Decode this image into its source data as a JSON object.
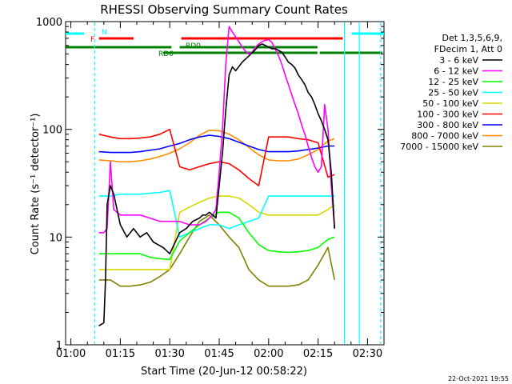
{
  "chart_data": {
    "type": "line",
    "title": "RHESSI Observing Summary Count Rates",
    "xlabel": "Start Time (20-Jun-12 00:58:22)",
    "ylabel": "Count Rate (s⁻¹ detector⁻¹)",
    "yscale": "log",
    "ylim": [
      1,
      1000
    ],
    "xlim": [
      58.4,
      155.0
    ],
    "x_unit": "minutes after 00:00 UT",
    "x_ticks": [
      {
        "value": 60,
        "label": "01:00"
      },
      {
        "value": 75,
        "label": "01:15"
      },
      {
        "value": 90,
        "label": "01:30"
      },
      {
        "value": 105,
        "label": "01:45"
      },
      {
        "value": 120,
        "label": "02:00"
      },
      {
        "value": 135,
        "label": "02:15"
      },
      {
        "value": 150,
        "label": "02:30"
      }
    ],
    "y_ticks": [
      {
        "value": 1,
        "label": "1"
      },
      {
        "value": 10,
        "label": "10"
      },
      {
        "value": 100,
        "label": "100"
      },
      {
        "value": 1000,
        "label": "1000"
      }
    ],
    "legend": {
      "position": "right",
      "header": [
        "Det 1,3,5,6,9,",
        "FDecim 1, Att 0"
      ]
    },
    "series": [
      {
        "name": "3 - 6 keV",
        "color": "#000000",
        "x": [
          68.5,
          70,
          70.5,
          71,
          72,
          73,
          75,
          77,
          79,
          81,
          83,
          85,
          88,
          90,
          93,
          95,
          97,
          99,
          100,
          101,
          102,
          103,
          104,
          105,
          106,
          107,
          108,
          109,
          110,
          112,
          114,
          116,
          117,
          118,
          119,
          120,
          121,
          122,
          123,
          124,
          125,
          126,
          127,
          128,
          129,
          130,
          131,
          132,
          133,
          134,
          135,
          136,
          137,
          138,
          139,
          140
        ],
        "y": [
          1.5,
          1.6,
          4,
          20,
          30,
          25,
          13,
          10,
          12,
          10,
          11,
          9,
          8,
          7,
          11,
          12,
          14,
          15,
          16,
          16,
          17,
          16,
          15,
          30,
          60,
          150,
          320,
          380,
          350,
          420,
          480,
          550,
          600,
          620,
          600,
          580,
          560,
          560,
          540,
          520,
          470,
          420,
          400,
          370,
          320,
          290,
          260,
          220,
          200,
          170,
          140,
          120,
          100,
          80,
          40,
          12
        ]
      },
      {
        "name": "6 - 12 keV",
        "color": "#ff00ff",
        "x": [
          68.5,
          70,
          71,
          72,
          73,
          75,
          78,
          81,
          84,
          87,
          90,
          93,
          96,
          99,
          101,
          102,
          103,
          104,
          105,
          106,
          107,
          108,
          109,
          110,
          111,
          112,
          113,
          114,
          115,
          116,
          117,
          118,
          119,
          120,
          121,
          122,
          123,
          124,
          125,
          126,
          127,
          128,
          129,
          130,
          131,
          132,
          133,
          134,
          135,
          136,
          137,
          138,
          139,
          140
        ],
        "y": [
          11,
          11,
          12,
          50,
          18,
          16,
          16,
          16,
          15,
          14,
          14,
          14,
          13,
          13,
          14,
          15,
          16,
          18,
          40,
          100,
          400,
          900,
          800,
          720,
          650,
          580,
          530,
          500,
          520,
          580,
          620,
          650,
          670,
          680,
          640,
          560,
          480,
          400,
          320,
          260,
          210,
          170,
          140,
          110,
          90,
          70,
          55,
          45,
          40,
          45,
          170,
          100,
          30,
          12
        ]
      },
      {
        "name": "12 - 25 keV",
        "color": "#00ff00",
        "x": [
          68.5,
          72,
          75,
          78,
          81,
          84,
          87,
          90,
          93,
          96,
          99,
          102,
          105,
          108,
          111,
          114,
          117,
          120,
          123,
          126,
          129,
          132,
          135,
          138,
          140
        ],
        "y": [
          7,
          7,
          7,
          7,
          7,
          6.5,
          6.3,
          6.2,
          9.2,
          11,
          13,
          15,
          17,
          17,
          15,
          11,
          8.5,
          7.5,
          7.3,
          7.2,
          7.3,
          7.5,
          8,
          9.5,
          10
        ]
      },
      {
        "name": "25 - 50 keV",
        "color": "#00ffff",
        "x": [
          68.5,
          72,
          75,
          78,
          81,
          84,
          87,
          90,
          93,
          96,
          99,
          102,
          105,
          108,
          111,
          114,
          117,
          120,
          123,
          126,
          129,
          132,
          135,
          138,
          140
        ],
        "y": [
          24,
          24,
          25,
          25,
          25,
          25.5,
          26,
          27,
          10,
          11,
          12,
          13,
          13,
          12,
          13,
          14,
          15,
          24,
          24,
          24,
          24,
          24,
          24,
          24,
          24
        ]
      },
      {
        "name": "50 - 100 keV",
        "color": "#d7d700",
        "x": [
          68.5,
          72,
          75,
          78,
          81,
          84,
          87,
          90,
          93,
          96,
          99,
          102,
          105,
          108,
          111,
          114,
          117,
          120,
          123,
          126,
          129,
          132,
          135,
          138,
          140
        ],
        "y": [
          5,
          5,
          5,
          5,
          5,
          5,
          5,
          5,
          17,
          19,
          21,
          23,
          24,
          24,
          23,
          20,
          17,
          16,
          16,
          16,
          16,
          16,
          16,
          18,
          20
        ]
      },
      {
        "name": "100 - 300 keV",
        "color": "#ff0000",
        "x": [
          68.5,
          72,
          75,
          78,
          81,
          84,
          87,
          90,
          93,
          96,
          99,
          102,
          105,
          108,
          111,
          114,
          117,
          120,
          123,
          126,
          129,
          132,
          135,
          138,
          140
        ],
        "y": [
          90,
          85,
          82,
          82,
          83,
          85,
          90,
          100,
          45,
          42,
          45,
          48,
          50,
          48,
          42,
          35,
          30,
          85,
          85,
          85,
          82,
          80,
          75,
          36,
          38
        ]
      },
      {
        "name": "300 - 800 keV",
        "color": "#0000ff",
        "x": [
          68.5,
          72,
          75,
          78,
          81,
          84,
          87,
          90,
          93,
          96,
          99,
          102,
          105,
          108,
          111,
          114,
          117,
          120,
          123,
          126,
          129,
          132,
          135,
          138,
          140
        ],
        "y": [
          62,
          61,
          61,
          61,
          62,
          64,
          66,
          70,
          74,
          80,
          85,
          88,
          86,
          82,
          76,
          70,
          65,
          62,
          62,
          62,
          63,
          65,
          67,
          70,
          70
        ]
      },
      {
        "name": "800 - 7000 keV",
        "color": "#ff8c00",
        "x": [
          68.5,
          72,
          75,
          78,
          81,
          84,
          87,
          90,
          93,
          96,
          99,
          102,
          105,
          108,
          111,
          114,
          117,
          120,
          123,
          126,
          129,
          132,
          135,
          138,
          140
        ],
        "y": [
          52,
          51,
          50,
          50,
          51,
          53,
          56,
          60,
          66,
          75,
          88,
          98,
          97,
          90,
          80,
          68,
          58,
          52,
          51,
          51,
          53,
          58,
          65,
          78,
          82
        ]
      },
      {
        "name": "7000 - 15000 keV",
        "color": "#808000",
        "x": [
          68.5,
          72,
          75,
          78,
          81,
          84,
          87,
          90,
          93,
          96,
          99,
          102,
          105,
          108,
          111,
          114,
          117,
          120,
          123,
          126,
          129,
          132,
          135,
          138,
          140
        ],
        "y": [
          4,
          4,
          3.5,
          3.5,
          3.6,
          3.8,
          4.3,
          5,
          7,
          10,
          14,
          16,
          13,
          10,
          8,
          5,
          4,
          3.5,
          3.5,
          3.5,
          3.6,
          4,
          5.5,
          8,
          4
        ]
      }
    ],
    "annotations": [
      {
        "label": "N",
        "color": "#00ffff"
      },
      {
        "label": "F",
        "color": "#ff0000"
      },
      {
        "label": "RD0",
        "color": "#008000"
      },
      {
        "label": "RD6",
        "color": "#008000"
      }
    ],
    "footer_date": "22-Oct-2021 19:55"
  }
}
